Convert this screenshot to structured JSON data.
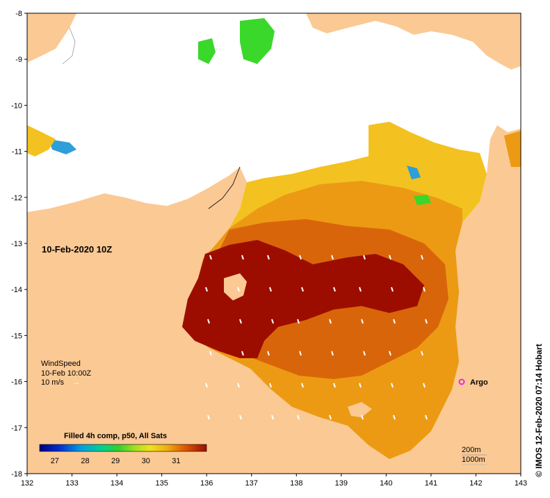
{
  "map": {
    "date_label": "10-Feb-2020 10Z",
    "wind": {
      "title": "WindSpeed",
      "time": "10-Feb 10:00Z",
      "scale": "10 m/s",
      "arrow": "→"
    },
    "argo": {
      "label": "Argo"
    },
    "isobaths": {
      "shallow": "200m",
      "deep": "1000m"
    },
    "credit": "© IMOS 12-Feb-2020 07:14 Hobart",
    "colorbar": {
      "title": "Filled 4h comp, p50, All Sats",
      "ticks": [
        "27",
        "28",
        "29",
        "30",
        "31"
      ],
      "min": 26.5,
      "max": 32.0,
      "tick_values": [
        27,
        28,
        29,
        30,
        31
      ]
    },
    "axes": {
      "lon_ticks": [
        "132",
        "133",
        "134",
        "135",
        "136",
        "137",
        "138",
        "139",
        "140",
        "141",
        "142",
        "143"
      ],
      "lat_ticks": [
        "-8",
        "-9",
        "-10",
        "-11",
        "-12",
        "-13",
        "-14",
        "-15",
        "-16",
        "-17",
        "-18"
      ],
      "lon_values": [
        132,
        133,
        134,
        135,
        136,
        137,
        138,
        139,
        140,
        141,
        142,
        143
      ],
      "lat_values": [
        -8,
        -9,
        -10,
        -11,
        -12,
        -13,
        -14,
        -15,
        -16,
        -17,
        -18
      ]
    },
    "colors": {
      "land": "#fbc994",
      "no_data": "#ffffff",
      "hot": "#9c0d00",
      "warm": "#d9650a",
      "mild": "#ec9a14",
      "cool": "#f3c220",
      "cold": "#2e9fd8",
      "green": "#3ad82a",
      "argo": "#e02ee0"
    }
  }
}
